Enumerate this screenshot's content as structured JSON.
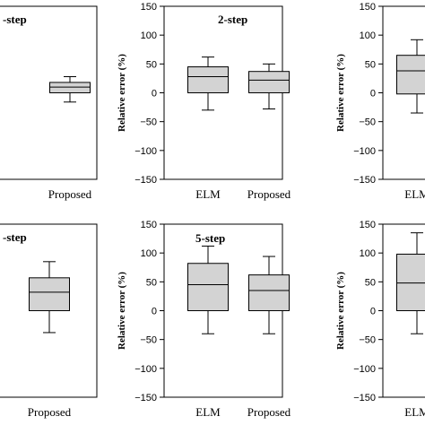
{
  "chart_data": [
    {
      "type": "box",
      "title": "-step",
      "ylabel": "",
      "ylim": [
        -150,
        150
      ],
      "show_yticks": false,
      "categories": [
        "Proposed"
      ],
      "boxes": [
        {
          "label": "Proposed",
          "whisker_low": -16,
          "q1": 0,
          "median": 10,
          "q3": 18,
          "whisker_high": 28
        }
      ]
    },
    {
      "type": "box",
      "title": "2-step",
      "ylabel": "Relative error (%)",
      "ylim": [
        -150,
        150
      ],
      "show_yticks": true,
      "yticks": [
        -150,
        -100,
        -50,
        0,
        50,
        100,
        150
      ],
      "categories": [
        "ELM",
        "Proposed"
      ],
      "boxes": [
        {
          "label": "ELM",
          "whisker_low": -30,
          "q1": 0,
          "median": 28,
          "q3": 45,
          "whisker_high": 62
        },
        {
          "label": "Proposed",
          "whisker_low": -28,
          "q1": 0,
          "median": 22,
          "q3": 37,
          "whisker_high": 50
        }
      ]
    },
    {
      "type": "box",
      "title": "",
      "ylabel": "Relative error (%)",
      "ylim": [
        -150,
        150
      ],
      "show_yticks": true,
      "yticks": [
        -150,
        -100,
        -50,
        0,
        50,
        100,
        150
      ],
      "categories": [
        "ELM"
      ],
      "boxes": [
        {
          "label": "ELM",
          "whisker_low": -35,
          "q1": -2,
          "median": 38,
          "q3": 65,
          "whisker_high": 92
        }
      ]
    },
    {
      "type": "box",
      "title": "-step",
      "ylabel": "",
      "ylim": [
        -150,
        150
      ],
      "show_yticks": false,
      "categories": [
        "Proposed"
      ],
      "boxes": [
        {
          "label": "Proposed",
          "whisker_low": -38,
          "q1": 0,
          "median": 32,
          "q3": 57,
          "whisker_high": 85
        }
      ]
    },
    {
      "type": "box",
      "title": "5-step",
      "ylabel": "Relative error (%)",
      "ylim": [
        -150,
        150
      ],
      "show_yticks": true,
      "yticks": [
        -150,
        -100,
        -50,
        0,
        50,
        100,
        150
      ],
      "categories": [
        "ELM",
        "Proposed"
      ],
      "boxes": [
        {
          "label": "ELM",
          "whisker_low": -40,
          "q1": 0,
          "median": 45,
          "q3": 82,
          "whisker_high": 112
        },
        {
          "label": "Proposed",
          "whisker_low": -40,
          "q1": 0,
          "median": 35,
          "q3": 62,
          "whisker_high": 94
        }
      ]
    },
    {
      "type": "box",
      "title": "",
      "ylabel": "Relative error (%)",
      "ylim": [
        -150,
        150
      ],
      "show_yticks": true,
      "yticks": [
        -150,
        -100,
        -50,
        0,
        50,
        100,
        150
      ],
      "categories": [
        "ELM"
      ],
      "boxes": [
        {
          "label": "ELM",
          "whisker_low": -40,
          "q1": 0,
          "median": 48,
          "q3": 98,
          "whisker_high": 135
        }
      ]
    }
  ],
  "colors": {
    "box_fill": "#d3d3d3",
    "stroke": "#000000",
    "background": "#ffffff"
  }
}
